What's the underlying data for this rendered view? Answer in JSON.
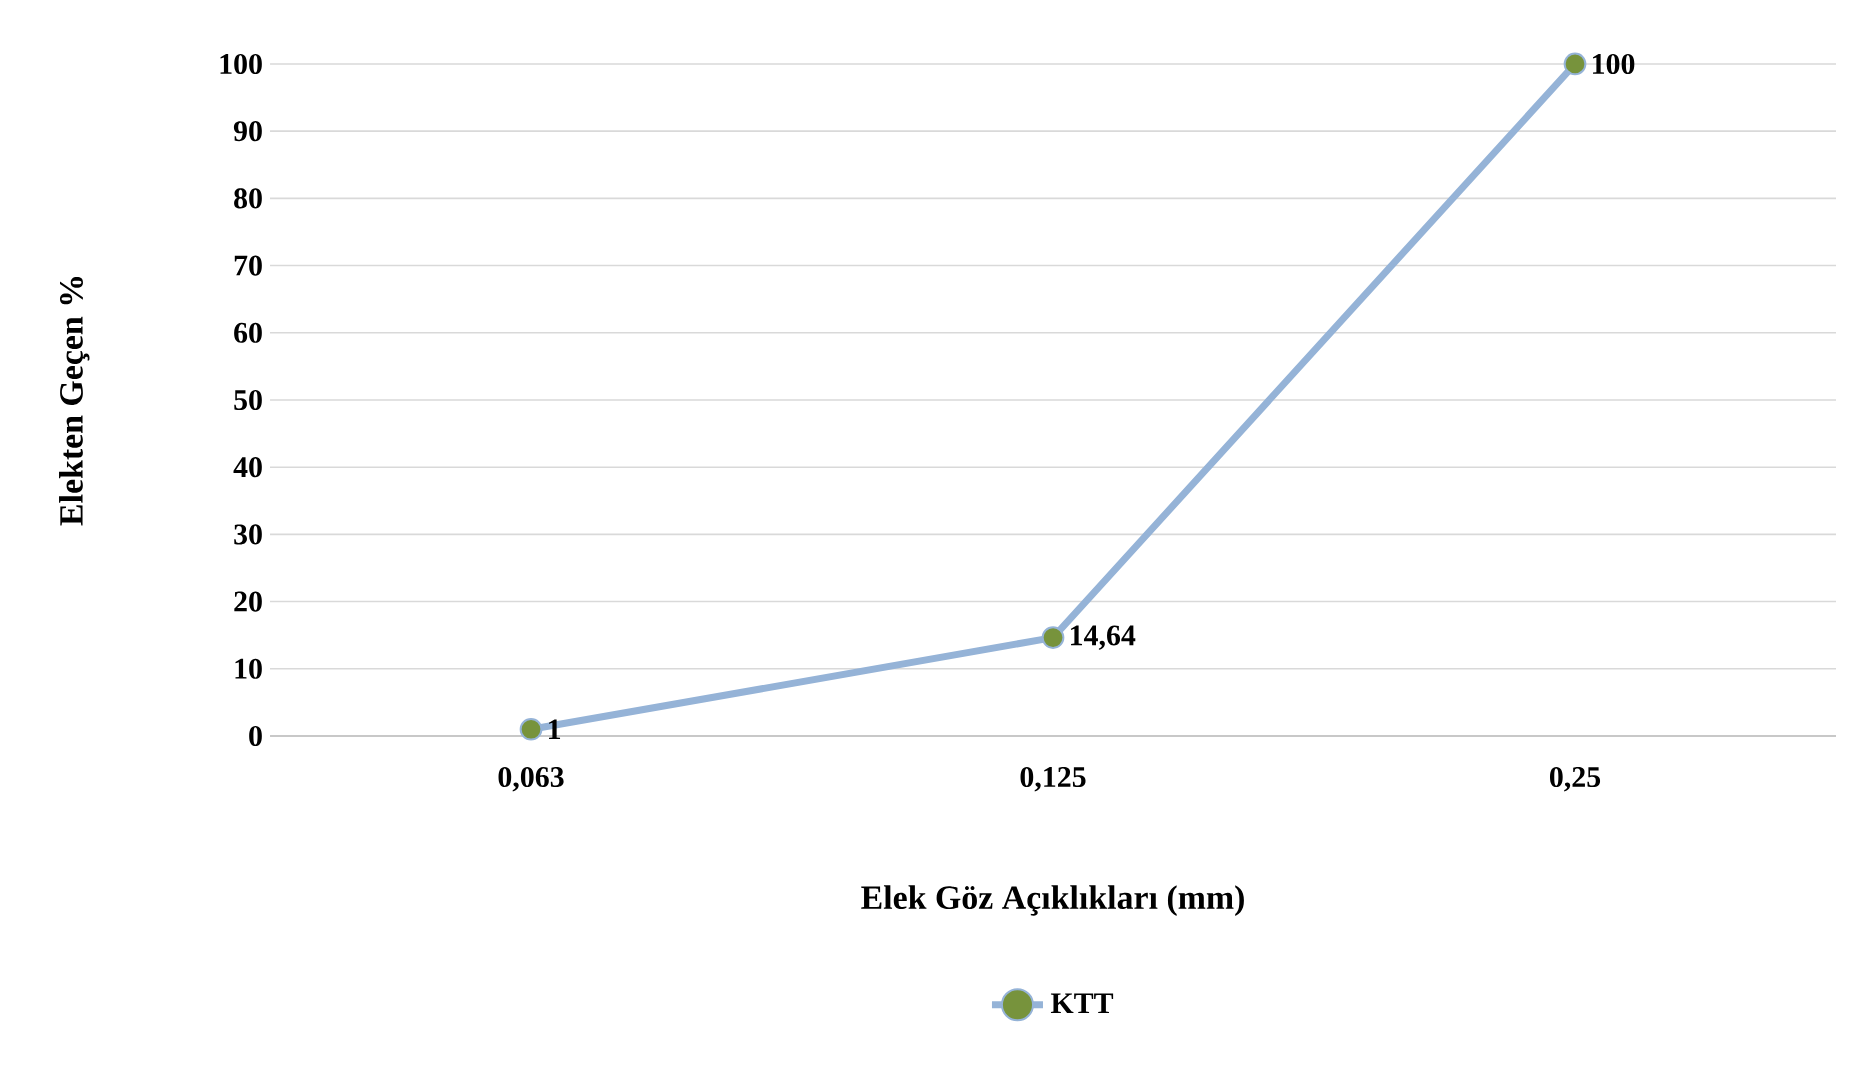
{
  "chart_data": {
    "type": "line",
    "xlabel": "Elek Göz Açıklıkları (mm)",
    "ylabel": "Elekten Geçen %",
    "categories": [
      "0,063",
      "0,125",
      "0,25"
    ],
    "series": [
      {
        "name": "KTT",
        "color": "#95b3d7",
        "colors": [
          "#77933c",
          "#77933c",
          "#77933c"
        ],
        "values": [
          1,
          14.64,
          100
        ],
        "value_labels": [
          "1",
          "14,64",
          "100"
        ]
      }
    ],
    "ylim": [
      0,
      100
    ],
    "yticks": [
      0,
      10,
      20,
      30,
      40,
      50,
      60,
      70,
      80,
      90,
      100
    ],
    "grid": "y",
    "legend": "bottom",
    "marker": "circle",
    "line_style": "solid"
  }
}
